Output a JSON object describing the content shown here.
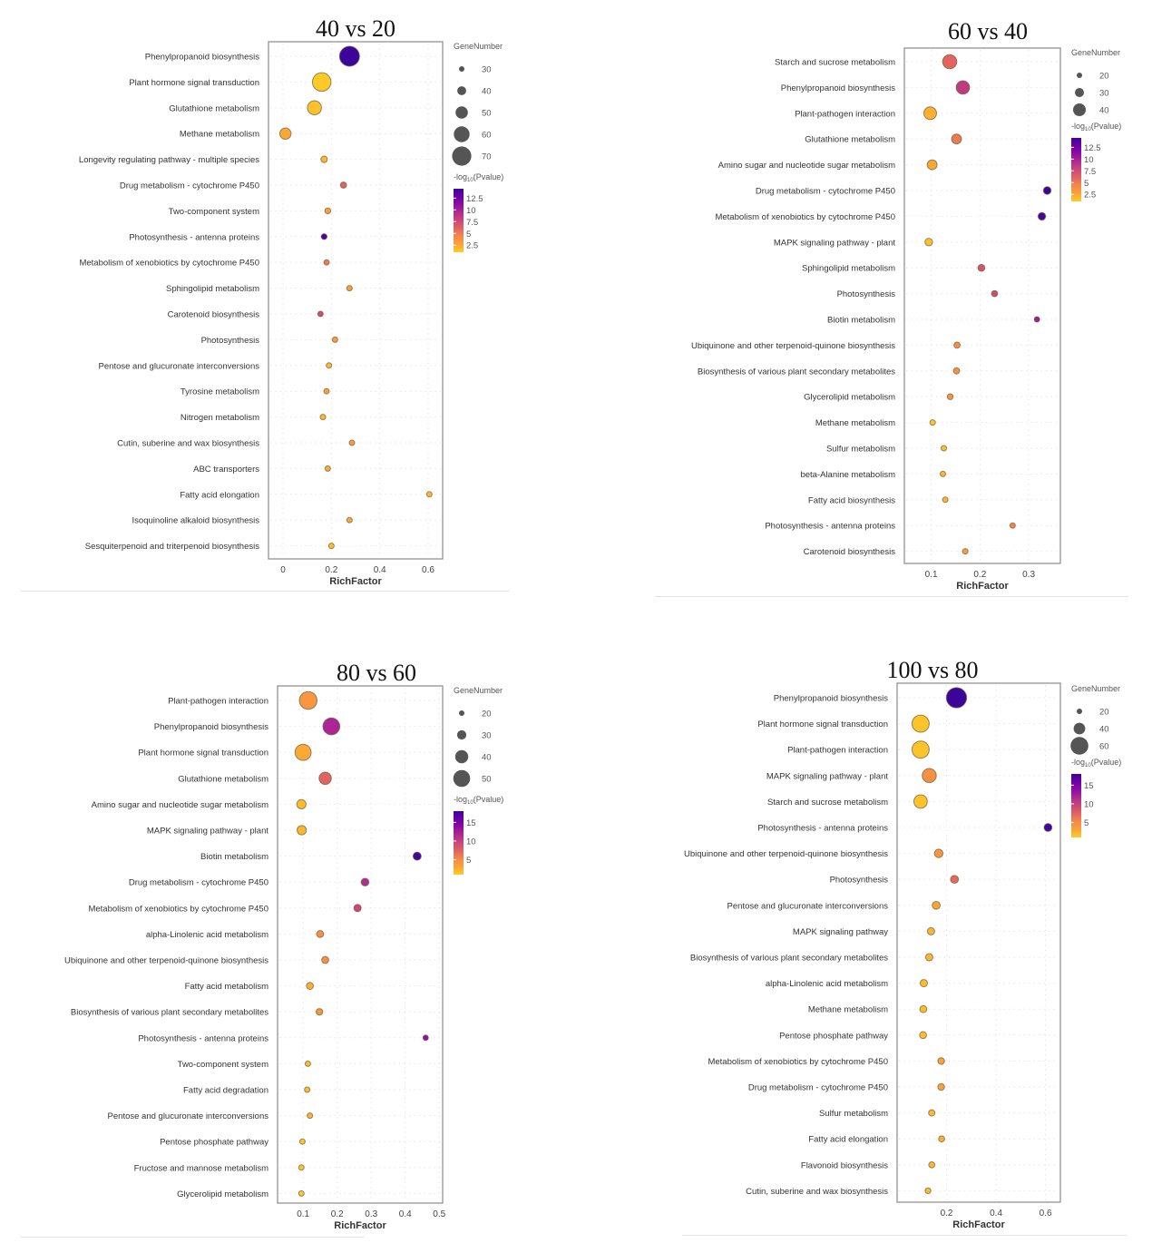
{
  "colorscale": {
    "name": "plasma",
    "stops": [
      "#fcce25",
      "#fba238",
      "#f48849",
      "#e16462",
      "#cc4778",
      "#b12a90",
      "#8f0da4",
      "#6a00a8",
      "#3c049b"
    ]
  },
  "chart_data": [
    {
      "type": "scatter",
      "title": "40 vs 20",
      "xlabel": "RichFactor",
      "ylabel": "",
      "xlim": [
        -0.06,
        0.66
      ],
      "xticks": [
        0,
        0.2,
        0.4,
        0.6
      ],
      "xtick_labels": [
        "0",
        "0.2",
        "0.4",
        "0.6"
      ],
      "grid": true,
      "size_legend": {
        "title": "GeneNumber",
        "values": [
          30,
          40,
          50,
          60,
          70
        ],
        "labels": [
          "30",
          "40",
          "50",
          "60",
          "70"
        ]
      },
      "color_legend": {
        "title_prefix": "-log",
        "title_sub": "10",
        "title_suffix": "(Pvalue)",
        "range": [
          1,
          14.5
        ],
        "ticks": [
          2.5,
          5,
          7.5,
          10,
          12.5
        ],
        "tick_labels": [
          "2.5",
          "5",
          "7.5",
          "10",
          "12.5"
        ]
      },
      "legend_position": "right",
      "points": [
        {
          "pathway": "Phenylpropanoid biosynthesis",
          "rich_factor": 0.275,
          "gene_number": 72,
          "neg_log10_p": 14.5
        },
        {
          "pathway": "Plant hormone signal transduction",
          "rich_factor": 0.16,
          "gene_number": 68,
          "neg_log10_p": 1.2
        },
        {
          "pathway": "Glutathione metabolism",
          "rich_factor": 0.13,
          "gene_number": 55,
          "neg_log10_p": 1.5
        },
        {
          "pathway": "Methane metabolism",
          "rich_factor": 0.01,
          "gene_number": 47,
          "neg_log10_p": 2.5
        },
        {
          "pathway": "Longevity regulating pathway - multiple species",
          "rich_factor": 0.17,
          "gene_number": 33,
          "neg_log10_p": 1.8
        },
        {
          "pathway": "Drug metabolism - cytochrome P450",
          "rich_factor": 0.25,
          "gene_number": 32,
          "neg_log10_p": 6.0
        },
        {
          "pathway": "Two-component system",
          "rich_factor": 0.185,
          "gene_number": 31,
          "neg_log10_p": 2.8
        },
        {
          "pathway": "Photosynthesis - antenna proteins",
          "rich_factor": 0.17,
          "gene_number": 31,
          "neg_log10_p": 14.0
        },
        {
          "pathway": "Metabolism of xenobiotics by cytochrome P450",
          "rich_factor": 0.18,
          "gene_number": 30,
          "neg_log10_p": 5.0
        },
        {
          "pathway": "Sphingolipid metabolism",
          "rich_factor": 0.275,
          "gene_number": 29,
          "neg_log10_p": 2.8
        },
        {
          "pathway": "Carotenoid biosynthesis",
          "rich_factor": 0.155,
          "gene_number": 29,
          "neg_log10_p": 7.5
        },
        {
          "pathway": "Photosynthesis",
          "rich_factor": 0.215,
          "gene_number": 28,
          "neg_log10_p": 3.2
        },
        {
          "pathway": "Pentose and glucuronate interconversions",
          "rich_factor": 0.19,
          "gene_number": 27,
          "neg_log10_p": 1.8
        },
        {
          "pathway": "Tyrosine metabolism",
          "rich_factor": 0.18,
          "gene_number": 27,
          "neg_log10_p": 2.8
        },
        {
          "pathway": "Nitrogen metabolism",
          "rich_factor": 0.165,
          "gene_number": 25,
          "neg_log10_p": 1.8
        },
        {
          "pathway": "Cutin, suberine and wax biosynthesis",
          "rich_factor": 0.285,
          "gene_number": 23,
          "neg_log10_p": 3.2
        },
        {
          "pathway": "ABC transporters",
          "rich_factor": 0.185,
          "gene_number": 23,
          "neg_log10_p": 2.2
        },
        {
          "pathway": "Fatty acid elongation",
          "rich_factor": 0.605,
          "gene_number": 22,
          "neg_log10_p": 1.8
        },
        {
          "pathway": "Isoquinoline alkaloid biosynthesis",
          "rich_factor": 0.275,
          "gene_number": 22,
          "neg_log10_p": 2.5
        },
        {
          "pathway": "Sesquiterpenoid and triterpenoid biosynthesis",
          "rich_factor": 0.2,
          "gene_number": 22,
          "neg_log10_p": 1.5
        }
      ]
    },
    {
      "type": "scatter",
      "title": "60 vs 40",
      "xlabel": "RichFactor",
      "ylabel": "",
      "xlim": [
        0.045,
        0.365
      ],
      "xticks": [
        0.1,
        0.2,
        0.3
      ],
      "xtick_labels": [
        "0.1",
        "0.2",
        "0.3"
      ],
      "grid": true,
      "size_legend": {
        "title": "GeneNumber",
        "values": [
          20,
          30,
          40
        ],
        "labels": [
          "20",
          "30",
          "40"
        ]
      },
      "color_legend": {
        "title_prefix": "-log",
        "title_sub": "10",
        "title_suffix": "(Pvalue)",
        "range": [
          1,
          14.5
        ],
        "ticks": [
          2.5,
          5,
          7.5,
          10,
          12.5
        ],
        "tick_labels": [
          "2.5",
          "5",
          "7.5",
          "10",
          "12.5"
        ]
      },
      "legend_position": "right",
      "points": [
        {
          "pathway": "Starch and sucrose metabolism",
          "rich_factor": 0.138,
          "gene_number": 44,
          "neg_log10_p": 6.0
        },
        {
          "pathway": "Phenylpropanoid biosynthesis",
          "rich_factor": 0.165,
          "gene_number": 42,
          "neg_log10_p": 8.5
        },
        {
          "pathway": "Plant-pathogen interaction",
          "rich_factor": 0.098,
          "gene_number": 40,
          "neg_log10_p": 2.2
        },
        {
          "pathway": "Glutathione metabolism",
          "rich_factor": 0.152,
          "gene_number": 32,
          "neg_log10_p": 5.0
        },
        {
          "pathway": "Amino sugar and nucleotide sugar metabolism",
          "rich_factor": 0.102,
          "gene_number": 32,
          "neg_log10_p": 2.5
        },
        {
          "pathway": "Drug metabolism - cytochrome P450",
          "rich_factor": 0.338,
          "gene_number": 26,
          "neg_log10_p": 14.5
        },
        {
          "pathway": "Metabolism of xenobiotics by cytochrome P450",
          "rich_factor": 0.327,
          "gene_number": 26,
          "neg_log10_p": 14.0
        },
        {
          "pathway": "MAPK signaling pathway - plant",
          "rich_factor": 0.095,
          "gene_number": 26,
          "neg_log10_p": 1.5
        },
        {
          "pathway": "Sphingolipid metabolism",
          "rich_factor": 0.203,
          "gene_number": 24,
          "neg_log10_p": 7.0
        },
        {
          "pathway": "Photosynthesis",
          "rich_factor": 0.23,
          "gene_number": 22,
          "neg_log10_p": 7.5
        },
        {
          "pathway": "Biotin metabolism",
          "rich_factor": 0.317,
          "gene_number": 20,
          "neg_log10_p": 10.5
        },
        {
          "pathway": "Ubiquinone and other terpenoid-quinone biosynthesis",
          "rich_factor": 0.153,
          "gene_number": 22,
          "neg_log10_p": 3.8
        },
        {
          "pathway": "Biosynthesis of various plant secondary metabolites",
          "rich_factor": 0.152,
          "gene_number": 22,
          "neg_log10_p": 3.8
        },
        {
          "pathway": "Glycerolipid metabolism",
          "rich_factor": 0.139,
          "gene_number": 21,
          "neg_log10_p": 3.5
        },
        {
          "pathway": "Methane metabolism",
          "rich_factor": 0.103,
          "gene_number": 17,
          "neg_log10_p": 1.2
        },
        {
          "pathway": "Sulfur metabolism",
          "rich_factor": 0.126,
          "gene_number": 16,
          "neg_log10_p": 1.5
        },
        {
          "pathway": "beta-Alanine metabolism",
          "rich_factor": 0.124,
          "gene_number": 16,
          "neg_log10_p": 1.8
        },
        {
          "pathway": "Fatty acid biosynthesis",
          "rich_factor": 0.129,
          "gene_number": 16,
          "neg_log10_p": 2.0
        },
        {
          "pathway": "Photosynthesis - antenna proteins",
          "rich_factor": 0.267,
          "gene_number": 14,
          "neg_log10_p": 4.5
        },
        {
          "pathway": "Carotenoid biosynthesis",
          "rich_factor": 0.17,
          "gene_number": 14,
          "neg_log10_p": 2.8
        }
      ]
    },
    {
      "type": "scatter",
      "title": "80 vs 60",
      "xlabel": "RichFactor",
      "ylabel": "",
      "xlim": [
        0.025,
        0.51
      ],
      "xticks": [
        0.1,
        0.2,
        0.3,
        0.4,
        0.5
      ],
      "xtick_labels": [
        "0.1",
        "0.2",
        "0.3",
        "0.4",
        "0.5"
      ],
      "grid": true,
      "size_legend": {
        "title": "GeneNumber",
        "values": [
          20,
          30,
          40,
          50
        ],
        "labels": [
          "20",
          "30",
          "40",
          "50"
        ]
      },
      "color_legend": {
        "title_prefix": "-log",
        "title_sub": "10",
        "title_suffix": "(Pvalue)",
        "range": [
          1,
          18
        ],
        "ticks": [
          5,
          10,
          15
        ],
        "tick_labels": [
          "5",
          "10",
          "15"
        ]
      },
      "legend_position": "right",
      "points": [
        {
          "pathway": "Plant-pathogen interaction",
          "rich_factor": 0.115,
          "gene_number": 52,
          "neg_log10_p": 4.0
        },
        {
          "pathway": "Phenylpropanoid biosynthesis",
          "rich_factor": 0.183,
          "gene_number": 50,
          "neg_log10_p": 12.0
        },
        {
          "pathway": "Plant hormone signal transduction",
          "rich_factor": 0.1,
          "gene_number": 48,
          "neg_log10_p": 2.8
        },
        {
          "pathway": "Glutathione metabolism",
          "rich_factor": 0.165,
          "gene_number": 38,
          "neg_log10_p": 7.5
        },
        {
          "pathway": "Amino sugar and nucleotide sugar metabolism",
          "rich_factor": 0.095,
          "gene_number": 30,
          "neg_log10_p": 1.8
        },
        {
          "pathway": "MAPK signaling pathway - plant",
          "rich_factor": 0.096,
          "gene_number": 30,
          "neg_log10_p": 2.2
        },
        {
          "pathway": "Biotin metabolism",
          "rich_factor": 0.435,
          "gene_number": 27,
          "neg_log10_p": 17.5
        },
        {
          "pathway": "Drug metabolism - cytochrome P450",
          "rich_factor": 0.282,
          "gene_number": 26,
          "neg_log10_p": 11.5
        },
        {
          "pathway": "Metabolism of xenobiotics by cytochrome P450",
          "rich_factor": 0.26,
          "gene_number": 25,
          "neg_log10_p": 9.5
        },
        {
          "pathway": "alpha-Linolenic acid metabolism",
          "rich_factor": 0.15,
          "gene_number": 24,
          "neg_log10_p": 4.5
        },
        {
          "pathway": "Ubiquinone and other terpenoid-quinone biosynthesis",
          "rich_factor": 0.165,
          "gene_number": 24,
          "neg_log10_p": 4.5
        },
        {
          "pathway": "Fatty acid metabolism",
          "rich_factor": 0.12,
          "gene_number": 24,
          "neg_log10_p": 2.5
        },
        {
          "pathway": "Biosynthesis of various plant secondary metabolites",
          "rich_factor": 0.148,
          "gene_number": 23,
          "neg_log10_p": 4.0
        },
        {
          "pathway": "Photosynthesis - antenna proteins",
          "rich_factor": 0.46,
          "gene_number": 20,
          "neg_log10_p": 13.5
        },
        {
          "pathway": "Two-component system",
          "rich_factor": 0.114,
          "gene_number": 19,
          "neg_log10_p": 1.8
        },
        {
          "pathway": "Fatty acid degradation",
          "rich_factor": 0.112,
          "gene_number": 19,
          "neg_log10_p": 1.8
        },
        {
          "pathway": "Pentose and glucuronate interconversions",
          "rich_factor": 0.12,
          "gene_number": 19,
          "neg_log10_p": 2.2
        },
        {
          "pathway": "Pentose phosphate pathway",
          "rich_factor": 0.098,
          "gene_number": 19,
          "neg_log10_p": 1.5
        },
        {
          "pathway": "Fructose and mannose metabolism",
          "rich_factor": 0.095,
          "gene_number": 18,
          "neg_log10_p": 1.5
        },
        {
          "pathway": "Glycerolipid metabolism",
          "rich_factor": 0.095,
          "gene_number": 18,
          "neg_log10_p": 1.2
        }
      ]
    },
    {
      "type": "scatter",
      "title": "100 vs 80",
      "xlabel": "RichFactor",
      "ylabel": "",
      "xlim": [
        0.0,
        0.66
      ],
      "xticks": [
        0.2,
        0.4,
        0.6
      ],
      "xtick_labels": [
        "0.2",
        "0.4",
        "0.6"
      ],
      "grid": true,
      "size_legend": {
        "title": "GeneNumber",
        "values": [
          20,
          40,
          60
        ],
        "labels": [
          "20",
          "40",
          "60"
        ]
      },
      "color_legend": {
        "title_prefix": "-log",
        "title_sub": "10",
        "title_suffix": "(Pvalue)",
        "range": [
          1,
          18
        ],
        "ticks": [
          5,
          10,
          15
        ],
        "tick_labels": [
          "5",
          "10",
          "15"
        ]
      },
      "legend_position": "right",
      "points": [
        {
          "pathway": "Phenylpropanoid biosynthesis",
          "rich_factor": 0.24,
          "gene_number": 68,
          "neg_log10_p": 18.0
        },
        {
          "pathway": "Plant hormone signal transduction",
          "rich_factor": 0.095,
          "gene_number": 58,
          "neg_log10_p": 1.5
        },
        {
          "pathway": "Plant-pathogen interaction",
          "rich_factor": 0.095,
          "gene_number": 58,
          "neg_log10_p": 1.5
        },
        {
          "pathway": "MAPK signaling pathway - plant",
          "rich_factor": 0.13,
          "gene_number": 48,
          "neg_log10_p": 4.5
        },
        {
          "pathway": "Starch and sucrose metabolism",
          "rich_factor": 0.095,
          "gene_number": 46,
          "neg_log10_p": 1.5
        },
        {
          "pathway": "Photosynthesis - antenna proteins",
          "rich_factor": 0.61,
          "gene_number": 28,
          "neg_log10_p": 17.5
        },
        {
          "pathway": "Ubiquinone and other terpenoid-quinone biosynthesis",
          "rich_factor": 0.168,
          "gene_number": 30,
          "neg_log10_p": 4.0
        },
        {
          "pathway": "Photosynthesis",
          "rich_factor": 0.232,
          "gene_number": 28,
          "neg_log10_p": 7.0
        },
        {
          "pathway": "Pentose and glucuronate interconversions",
          "rich_factor": 0.158,
          "gene_number": 28,
          "neg_log10_p": 3.0
        },
        {
          "pathway": "MAPK signaling pathway",
          "rich_factor": 0.137,
          "gene_number": 26,
          "neg_log10_p": 2.2
        },
        {
          "pathway": "Biosynthesis of various plant secondary metabolites",
          "rich_factor": 0.13,
          "gene_number": 26,
          "neg_log10_p": 2.2
        },
        {
          "pathway": "alpha-Linolenic acid metabolism",
          "rich_factor": 0.108,
          "gene_number": 26,
          "neg_log10_p": 1.8
        },
        {
          "pathway": "Methane metabolism",
          "rich_factor": 0.106,
          "gene_number": 25,
          "neg_log10_p": 1.8
        },
        {
          "pathway": "Pentose phosphate pathway",
          "rich_factor": 0.105,
          "gene_number": 25,
          "neg_log10_p": 1.8
        },
        {
          "pathway": "Metabolism of xenobiotics by cytochrome P450",
          "rich_factor": 0.178,
          "gene_number": 24,
          "neg_log10_p": 3.2
        },
        {
          "pathway": "Drug metabolism - cytochrome P450",
          "rich_factor": 0.178,
          "gene_number": 24,
          "neg_log10_p": 3.2
        },
        {
          "pathway": "Sulfur metabolism",
          "rich_factor": 0.14,
          "gene_number": 23,
          "neg_log10_p": 2.0
        },
        {
          "pathway": "Fatty acid elongation",
          "rich_factor": 0.18,
          "gene_number": 22,
          "neg_log10_p": 2.5
        },
        {
          "pathway": "Flavonoid biosynthesis",
          "rich_factor": 0.14,
          "gene_number": 22,
          "neg_log10_p": 2.0
        },
        {
          "pathway": "Cutin, suberine and wax biosynthesis",
          "rich_factor": 0.125,
          "gene_number": 21,
          "neg_log10_p": 1.8
        }
      ]
    }
  ]
}
